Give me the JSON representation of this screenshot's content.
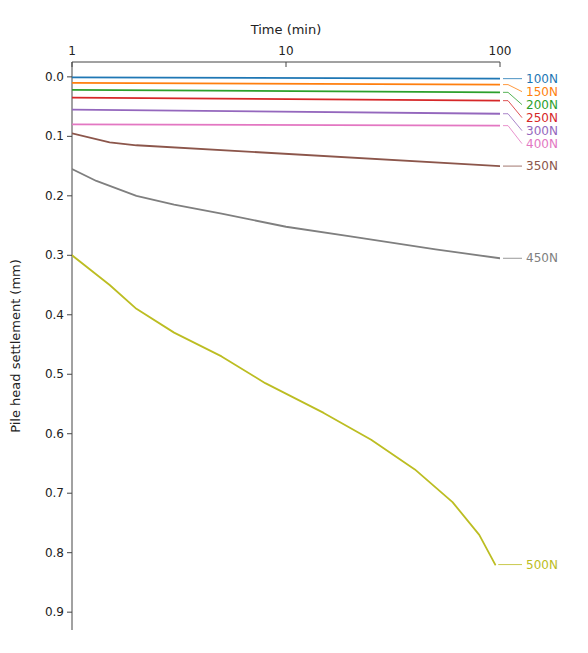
{
  "chart_data": {
    "type": "line",
    "x_label": "Time (min)",
    "y_label": "Pile head settlement (mm)",
    "log": "x",
    "xlim": [
      1,
      100
    ],
    "xticks": [
      1,
      10,
      100
    ],
    "ylim": [
      0.93,
      -0.025
    ],
    "yticks": [
      {
        "value": 0,
        "label": "0.0"
      },
      0.1,
      0.2,
      0.3,
      0.4,
      0.5,
      0.6,
      0.7,
      0.8,
      0.9
    ],
    "series": [
      {
        "name": "100N",
        "x": [
          1,
          100
        ],
        "values": [
          0.001,
          0.003
        ]
      },
      {
        "name": "150N",
        "x": [
          1,
          100
        ],
        "values": [
          0.01,
          0.013
        ]
      },
      {
        "name": "200N",
        "x": [
          1,
          100
        ],
        "values": [
          0.022,
          0.026
        ]
      },
      {
        "name": "250N",
        "x": [
          1,
          100
        ],
        "values": [
          0.035,
          0.04
        ]
      },
      {
        "name": "300N",
        "x": [
          1,
          100
        ],
        "values": [
          0.055,
          0.062
        ]
      },
      {
        "name": "350N",
        "x": [
          1,
          1.5,
          2,
          100
        ],
        "values": [
          0.095,
          0.11,
          0.115,
          0.15
        ]
      },
      {
        "name": "400N",
        "x": [
          1,
          100
        ],
        "values": [
          0.08,
          0.082
        ]
      },
      {
        "name": "450N",
        "x": [
          1,
          1.3,
          2,
          3,
          5,
          10,
          20,
          50,
          100
        ],
        "values": [
          0.155,
          0.175,
          0.2,
          0.215,
          0.23,
          0.252,
          0.268,
          0.29,
          0.305
        ]
      },
      {
        "name": "500N",
        "x": [
          1,
          1.5,
          2,
          3,
          5,
          8,
          15,
          25,
          40,
          60,
          80,
          95
        ],
        "values": [
          0.3,
          0.35,
          0.39,
          0.43,
          0.47,
          0.515,
          0.565,
          0.61,
          0.66,
          0.715,
          0.77,
          0.82
        ]
      }
    ]
  }
}
